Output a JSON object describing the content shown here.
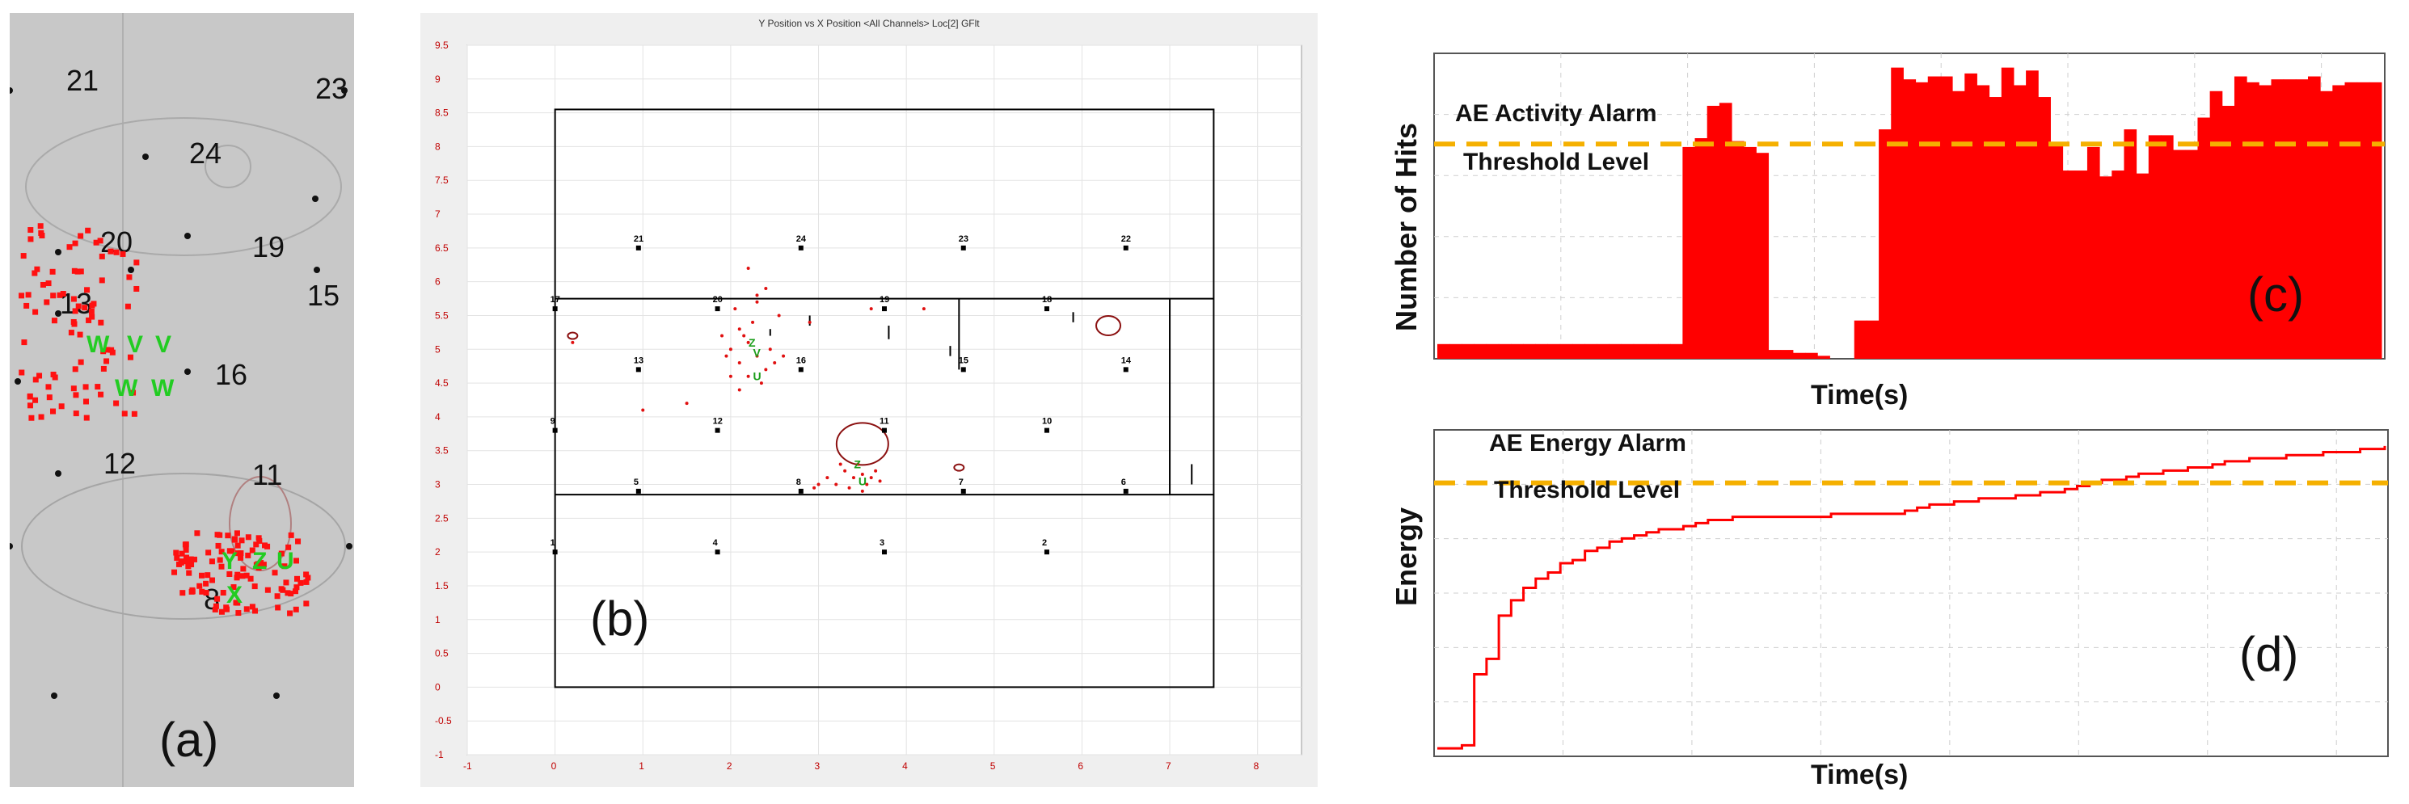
{
  "panel_a": {
    "label": "(a)",
    "sensors": [
      {
        "id": "21",
        "x": 70,
        "y": 96
      },
      {
        "id": "23",
        "x": 378,
        "y": 106
      },
      {
        "id": "24",
        "x": 222,
        "y": 186
      },
      {
        "id": "20",
        "x": 112,
        "y": 296
      },
      {
        "id": "19",
        "x": 300,
        "y": 302
      },
      {
        "id": "13",
        "x": 62,
        "y": 372
      },
      {
        "id": "15",
        "x": 368,
        "y": 362
      },
      {
        "id": "16",
        "x": 254,
        "y": 460
      },
      {
        "id": "12",
        "x": 116,
        "y": 570
      },
      {
        "id": "11",
        "x": 300,
        "y": 584
      },
      {
        "id": "8",
        "x": 240,
        "y": 738
      }
    ],
    "markers": [
      "W",
      "V",
      "W",
      "Y",
      "Z",
      "U",
      "X"
    ]
  },
  "chart_b": {
    "type": "scatter",
    "title": "Y Position vs X Position <All Channels> Loc[2] GFlt",
    "xlim": [
      -1,
      8.5
    ],
    "ylim": [
      -1,
      9.5
    ],
    "xticks": [
      -1,
      0,
      1,
      2,
      3,
      4,
      5,
      6,
      7,
      8
    ],
    "yticks": [
      -1,
      -0.5,
      0,
      0.5,
      1,
      1.5,
      2,
      2.5,
      3,
      3.5,
      4,
      4.5,
      5,
      5.5,
      6,
      6.5,
      7,
      7.5,
      8,
      8.5,
      9,
      9.5
    ],
    "sensors": [
      {
        "id": "1",
        "x": 0,
        "y": 2.0
      },
      {
        "id": "2",
        "x": 5.6,
        "y": 2.0
      },
      {
        "id": "3",
        "x": 3.75,
        "y": 2.0
      },
      {
        "id": "4",
        "x": 1.85,
        "y": 2.0
      },
      {
        "id": "5",
        "x": 0.95,
        "y": 2.9
      },
      {
        "id": "6",
        "x": 6.5,
        "y": 2.9
      },
      {
        "id": "7",
        "x": 4.65,
        "y": 2.9
      },
      {
        "id": "8",
        "x": 2.8,
        "y": 2.9
      },
      {
        "id": "9",
        "x": 0,
        "y": 3.8
      },
      {
        "id": "10",
        "x": 5.6,
        "y": 3.8
      },
      {
        "id": "11",
        "x": 3.75,
        "y": 3.8
      },
      {
        "id": "12",
        "x": 1.85,
        "y": 3.8
      },
      {
        "id": "13",
        "x": 0.95,
        "y": 4.7
      },
      {
        "id": "14",
        "x": 6.5,
        "y": 4.7
      },
      {
        "id": "15",
        "x": 4.65,
        "y": 4.7
      },
      {
        "id": "16",
        "x": 2.8,
        "y": 4.7
      },
      {
        "id": "17",
        "x": 0,
        "y": 5.6
      },
      {
        "id": "18",
        "x": 5.6,
        "y": 5.6
      },
      {
        "id": "19",
        "x": 3.75,
        "y": 5.6
      },
      {
        "id": "20",
        "x": 1.85,
        "y": 5.6
      },
      {
        "id": "21",
        "x": 0.95,
        "y": 6.5
      },
      {
        "id": "22",
        "x": 6.5,
        "y": 6.5
      },
      {
        "id": "23",
        "x": 4.65,
        "y": 6.5
      },
      {
        "id": "24",
        "x": 2.8,
        "y": 6.5
      }
    ],
    "events": [
      [
        2.1,
        5.3
      ],
      [
        2.2,
        5.1
      ],
      [
        2.0,
        5.0
      ],
      [
        2.3,
        4.9
      ],
      [
        2.1,
        4.8
      ],
      [
        2.4,
        4.7
      ],
      [
        1.95,
        4.9
      ],
      [
        2.25,
        5.4
      ],
      [
        2.05,
        5.6
      ],
      [
        2.2,
        4.6
      ],
      [
        2.35,
        4.5
      ],
      [
        2.5,
        4.8
      ],
      [
        2.15,
        5.2
      ],
      [
        1.9,
        5.2
      ],
      [
        2.3,
        5.7
      ],
      [
        2.45,
        5.0
      ],
      [
        2.0,
        4.6
      ],
      [
        2.6,
        4.9
      ],
      [
        2.2,
        6.2
      ],
      [
        2.4,
        5.9
      ],
      [
        1.5,
        4.2
      ],
      [
        1.0,
        4.1
      ],
      [
        2.55,
        5.5
      ],
      [
        2.3,
        5.8
      ],
      [
        2.1,
        4.4
      ],
      [
        3.3,
        3.2
      ],
      [
        3.4,
        3.1
      ],
      [
        3.5,
        3.15
      ],
      [
        3.2,
        3.0
      ],
      [
        3.6,
        3.1
      ],
      [
        3.0,
        3.0
      ],
      [
        3.45,
        3.3
      ],
      [
        3.35,
        2.95
      ],
      [
        3.55,
        3.0
      ],
      [
        3.25,
        3.3
      ],
      [
        3.1,
        3.1
      ],
      [
        3.65,
        3.2
      ],
      [
        3.5,
        2.9
      ],
      [
        2.95,
        2.95
      ],
      [
        3.7,
        3.05
      ],
      [
        3.6,
        5.6
      ],
      [
        2.9,
        5.4
      ],
      [
        4.2,
        5.6
      ],
      [
        0.2,
        5.1
      ]
    ],
    "markers": [
      {
        "label": "Z",
        "x": 2.25,
        "y": 5.1
      },
      {
        "label": "V",
        "x": 2.3,
        "y": 4.95
      },
      {
        "label": "U",
        "x": 2.3,
        "y": 4.6
      },
      {
        "label": "Z",
        "x": 3.45,
        "y": 3.3
      },
      {
        "label": "U",
        "x": 3.5,
        "y": 3.05
      }
    ],
    "label": "(b)"
  },
  "chart_c": {
    "type": "bar",
    "ylabel": "Number of Hits",
    "xlabel": "Time(s)",
    "alarm_label": "AE Activity Alarm",
    "threshold_label": "Threshold Level",
    "threshold": 0.73,
    "values": [
      0.05,
      0.05,
      0.05,
      0.05,
      0.05,
      0.05,
      0.05,
      0.05,
      0.05,
      0.05,
      0.05,
      0.05,
      0.05,
      0.05,
      0.05,
      0.05,
      0.05,
      0.05,
      0.05,
      0.05,
      0.72,
      0.75,
      0.86,
      0.87,
      0.74,
      0.72,
      0.7,
      0.03,
      0.03,
      0.02,
      0.02,
      0.01,
      0.0,
      0.0,
      0.13,
      0.13,
      0.78,
      0.99,
      0.95,
      0.94,
      0.96,
      0.96,
      0.91,
      0.97,
      0.93,
      0.89,
      0.99,
      0.93,
      0.98,
      0.89,
      0.73,
      0.64,
      0.64,
      0.72,
      0.62,
      0.64,
      0.78,
      0.63,
      0.76,
      0.76,
      0.71,
      0.71,
      0.82,
      0.91,
      0.86,
      0.96,
      0.94,
      0.93,
      0.95,
      0.95,
      0.95,
      0.96,
      0.91,
      0.93,
      0.94,
      0.94,
      0.94
    ],
    "ylim": [
      0,
      1
    ],
    "label": "(c)"
  },
  "chart_d": {
    "type": "line",
    "ylabel": "Energy",
    "xlabel": "Time(s)",
    "alarm_label": "AE Energy Alarm",
    "threshold_label": "Threshold Level",
    "threshold": 0.87,
    "values": [
      0.01,
      0.01,
      0.02,
      0.25,
      0.3,
      0.44,
      0.49,
      0.53,
      0.56,
      0.58,
      0.61,
      0.62,
      0.65,
      0.66,
      0.68,
      0.69,
      0.7,
      0.71,
      0.72,
      0.72,
      0.73,
      0.74,
      0.75,
      0.75,
      0.76,
      0.76,
      0.76,
      0.76,
      0.76,
      0.76,
      0.76,
      0.76,
      0.77,
      0.77,
      0.77,
      0.77,
      0.77,
      0.77,
      0.78,
      0.79,
      0.8,
      0.8,
      0.81,
      0.81,
      0.82,
      0.82,
      0.82,
      0.83,
      0.83,
      0.84,
      0.84,
      0.85,
      0.86,
      0.87,
      0.88,
      0.88,
      0.89,
      0.9,
      0.9,
      0.91,
      0.91,
      0.92,
      0.92,
      0.93,
      0.94,
      0.94,
      0.95,
      0.95,
      0.95,
      0.96,
      0.96,
      0.96,
      0.97,
      0.97,
      0.97,
      0.98,
      0.98,
      0.99
    ],
    "ylim": [
      0,
      1
    ],
    "label": "(d)"
  }
}
